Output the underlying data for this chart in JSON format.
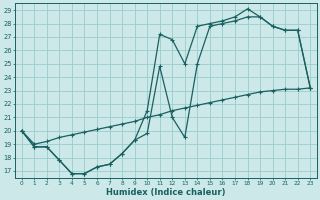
{
  "title": "",
  "xlabel": "Humidex (Indice chaleur)",
  "bg_color": "#cce8e8",
  "grid_color": "#99cccc",
  "line_color": "#1a6060",
  "xlim": [
    -0.5,
    23.5
  ],
  "ylim": [
    16.5,
    29.5
  ],
  "xticks": [
    0,
    1,
    2,
    3,
    4,
    5,
    6,
    7,
    8,
    9,
    10,
    11,
    12,
    13,
    14,
    15,
    16,
    17,
    18,
    19,
    20,
    21,
    22,
    23
  ],
  "yticks": [
    17,
    18,
    19,
    20,
    21,
    22,
    23,
    24,
    25,
    26,
    27,
    28,
    29
  ],
  "line1_x": [
    0,
    1,
    2,
    3,
    4,
    5,
    6,
    7,
    8,
    9,
    10,
    11,
    12,
    13,
    14,
    15,
    16,
    17,
    18,
    19,
    20,
    21,
    22,
    23
  ],
  "line1_y": [
    20.0,
    18.8,
    18.8,
    17.8,
    16.8,
    16.8,
    17.3,
    17.5,
    18.3,
    19.3,
    21.5,
    27.2,
    26.8,
    25.0,
    27.8,
    28.0,
    28.2,
    28.5,
    29.1,
    28.5,
    27.8,
    27.5,
    27.5,
    23.2
  ],
  "line2_x": [
    0,
    1,
    2,
    3,
    4,
    5,
    6,
    7,
    8,
    9,
    10,
    11,
    12,
    13,
    14,
    15,
    16,
    17,
    18,
    19,
    20,
    21,
    22,
    23
  ],
  "line2_y": [
    20.0,
    18.8,
    18.8,
    17.8,
    16.8,
    16.8,
    17.3,
    17.5,
    18.3,
    19.3,
    19.8,
    24.8,
    21.0,
    19.5,
    25.0,
    27.8,
    28.0,
    28.2,
    28.5,
    28.5,
    27.8,
    27.5,
    27.5,
    23.2
  ],
  "line3_x": [
    0,
    1,
    2,
    3,
    4,
    5,
    6,
    7,
    8,
    9,
    10,
    11,
    12,
    13,
    14,
    15,
    16,
    17,
    18,
    19,
    20,
    21,
    22,
    23
  ],
  "line3_y": [
    20.0,
    19.0,
    19.2,
    19.5,
    19.7,
    19.9,
    20.1,
    20.3,
    20.5,
    20.7,
    21.0,
    21.2,
    21.5,
    21.7,
    21.9,
    22.1,
    22.3,
    22.5,
    22.7,
    22.9,
    23.0,
    23.1,
    23.1,
    23.2
  ]
}
